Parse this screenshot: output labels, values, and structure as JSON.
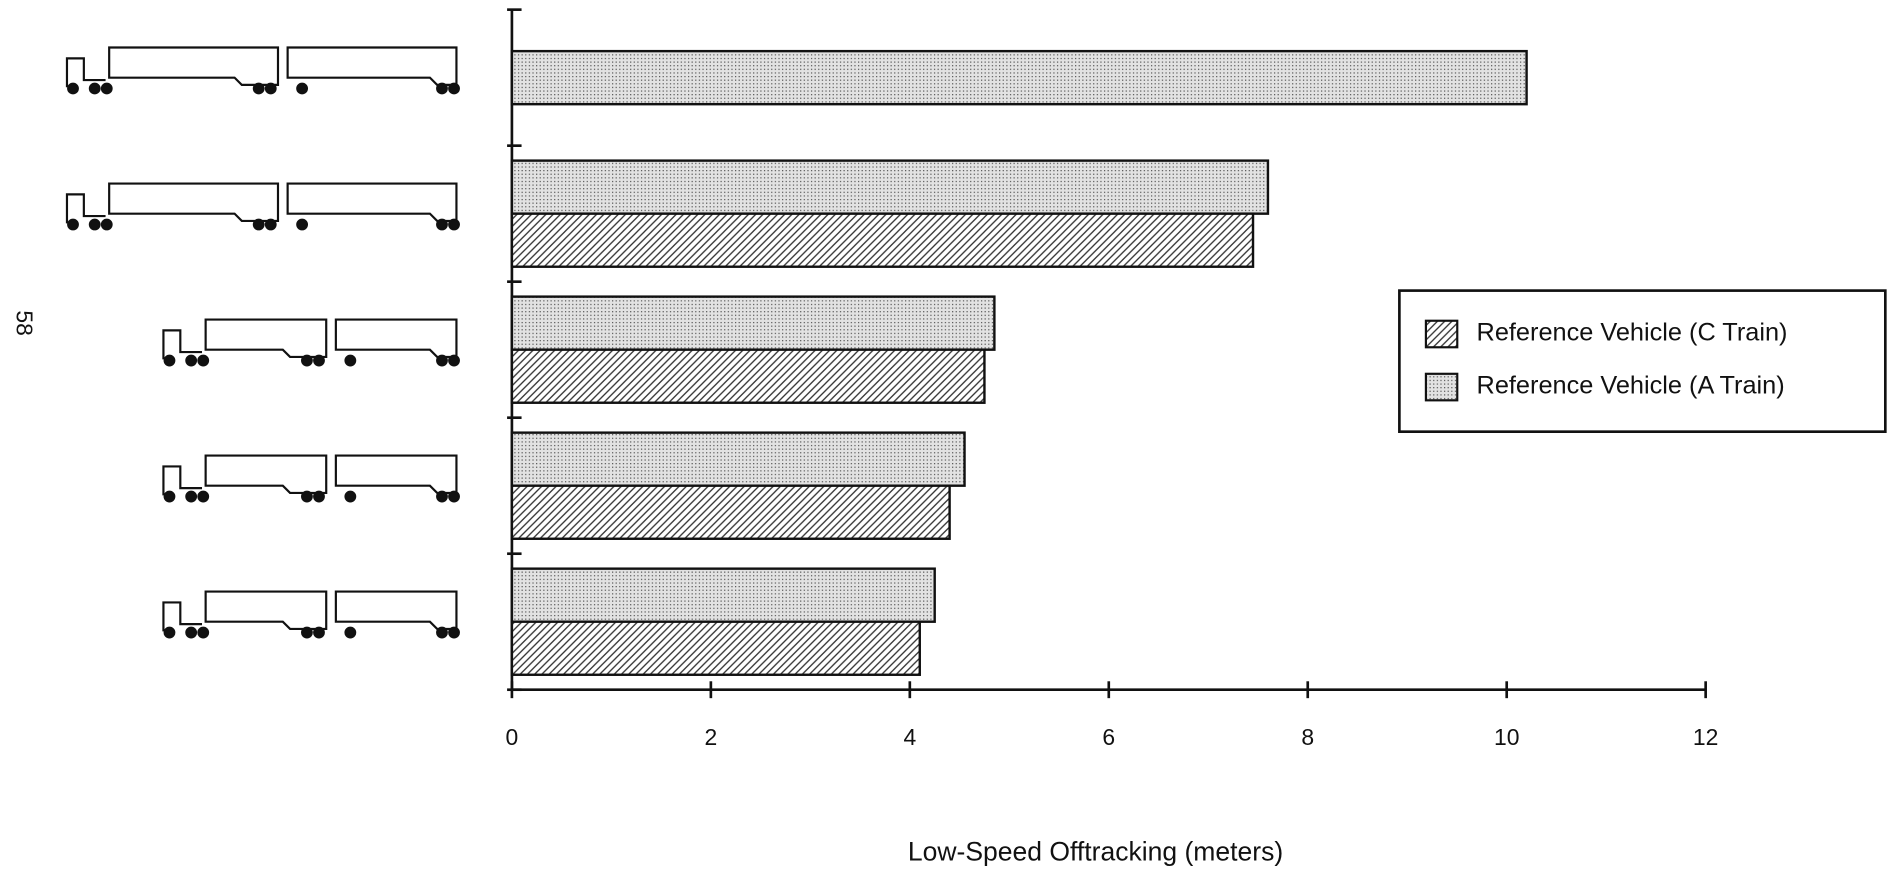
{
  "page_number": "58",
  "chart_data": {
    "type": "hbar",
    "x_label": "Low-Speed Offtracking (meters)",
    "categories": [
      null,
      null,
      null,
      null,
      null
    ],
    "series": [
      {
        "name": "Reference Vehicle (C Train)",
        "color": "#333333",
        "pattern": "hatch",
        "values": [
          null,
          7.45,
          4.75,
          4.4,
          4.1
        ]
      },
      {
        "name": "Reference Vehicle (A Train)",
        "color": "#555555",
        "pattern": "dots",
        "values": [
          10.2,
          7.6,
          4.85,
          4.55,
          4.25
        ]
      }
    ],
    "xlim": [
      0,
      12
    ],
    "xticks": [
      0,
      2,
      4,
      6,
      8,
      10,
      12
    ],
    "legend": "right"
  }
}
